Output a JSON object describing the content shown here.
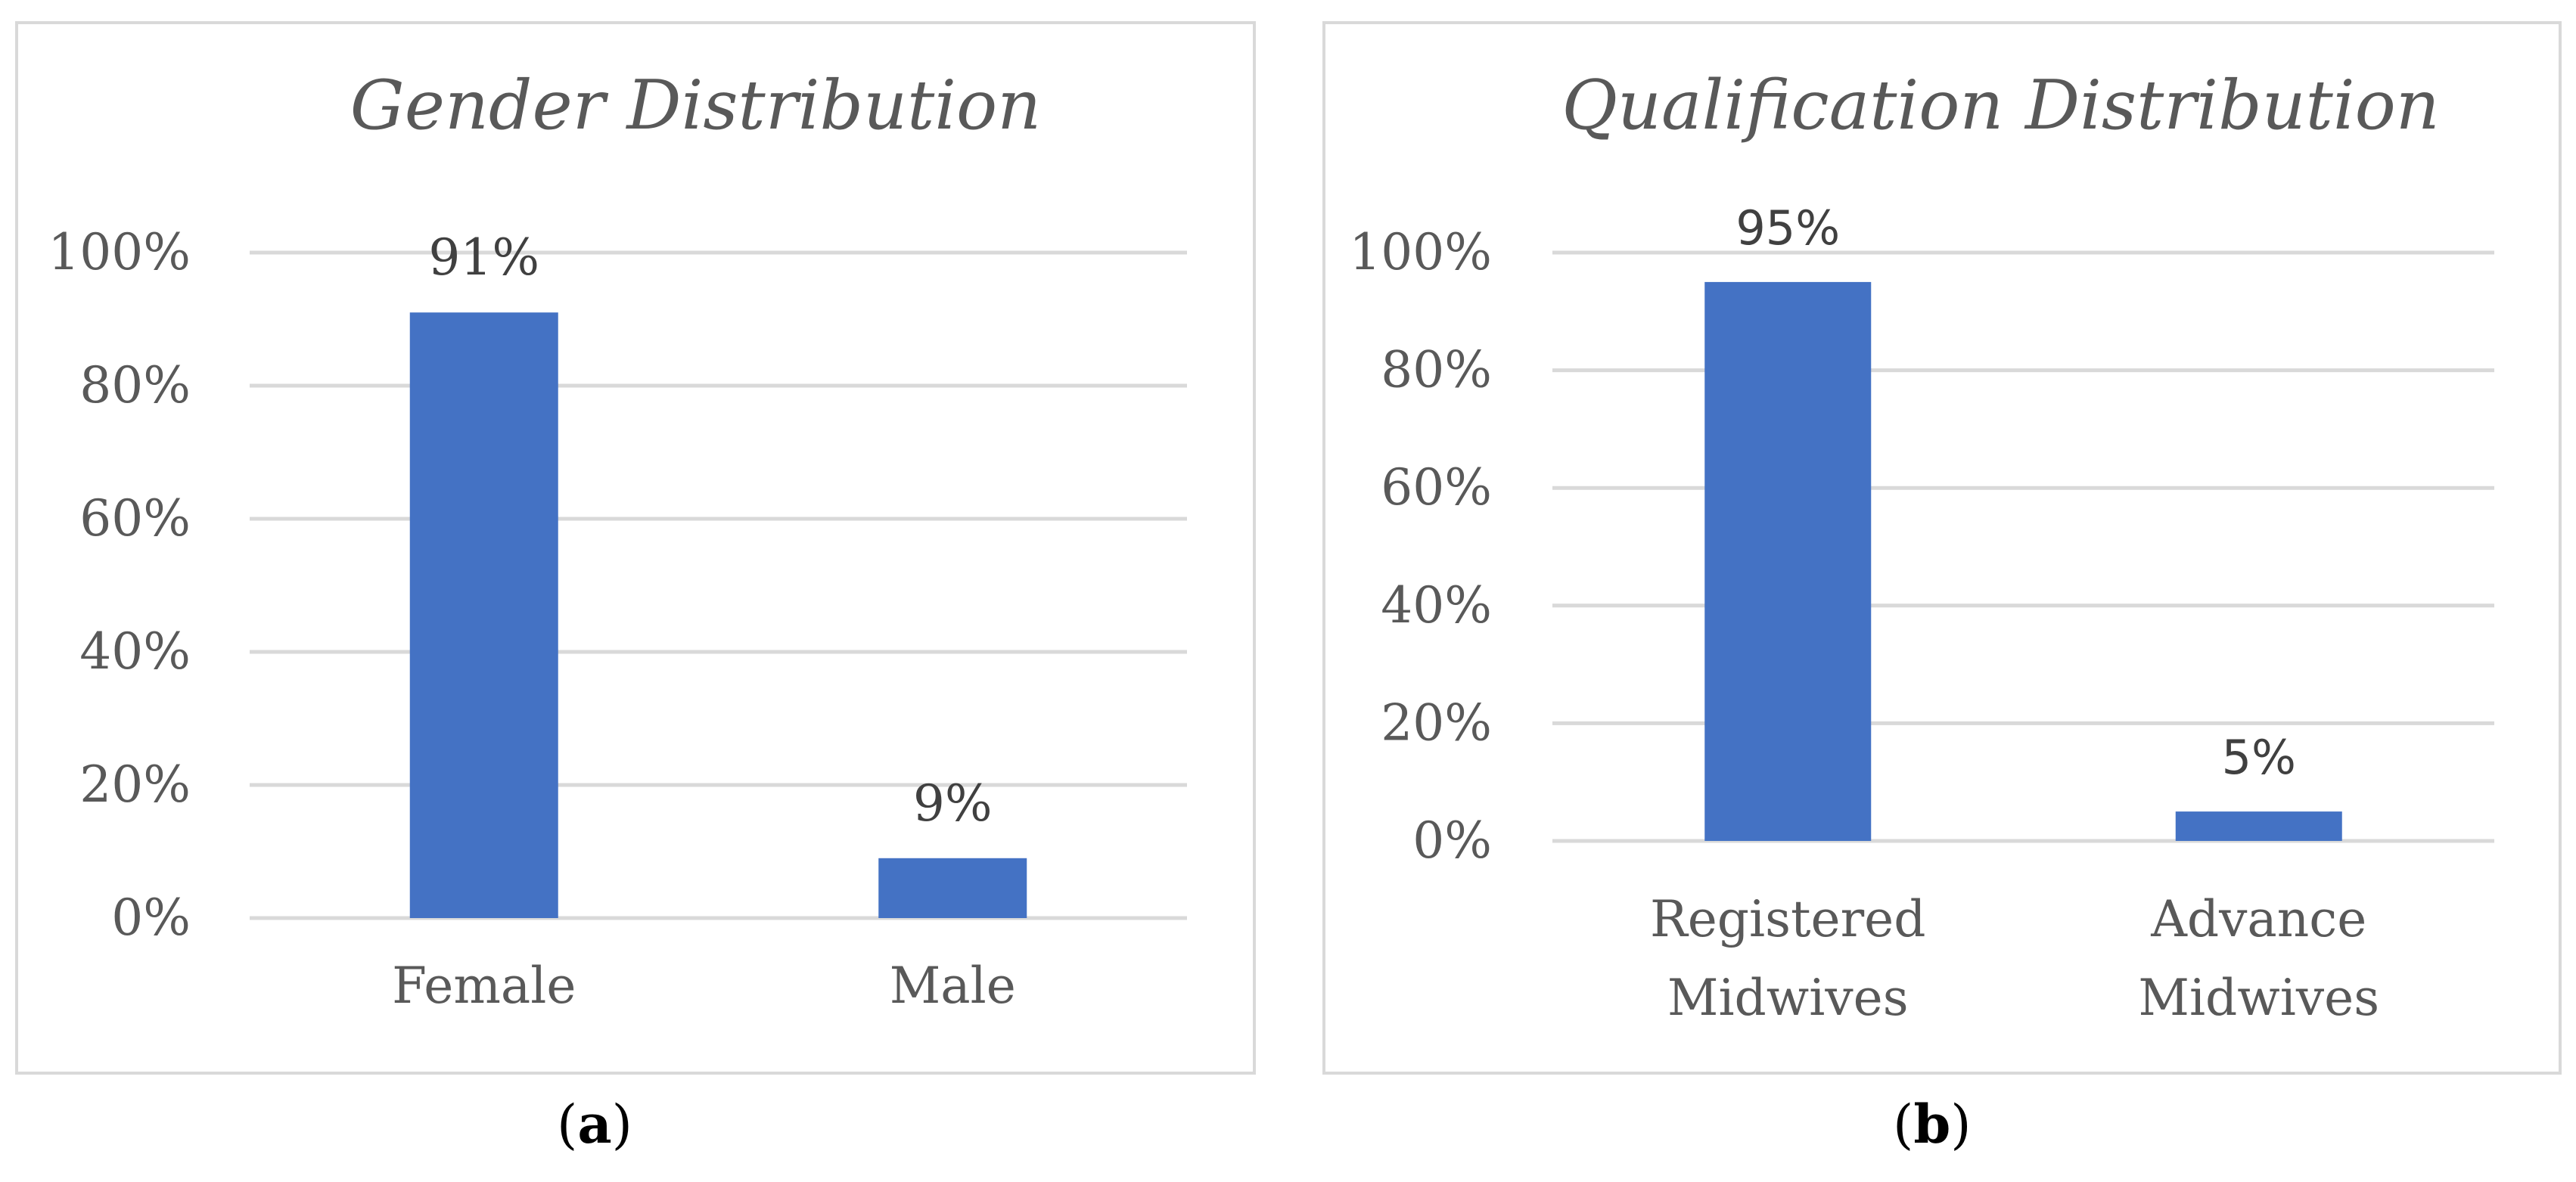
{
  "chart_data": [
    {
      "type": "bar",
      "title": "Gender Distribution",
      "categories": [
        "Female",
        "Male"
      ],
      "values": [
        91,
        9
      ],
      "data_labels": [
        "91%",
        "9%"
      ],
      "ylim": [
        0,
        100
      ],
      "yticks": [
        "0%",
        "20%",
        "40%",
        "60%",
        "80%",
        "100%"
      ],
      "grid": true,
      "bar_color": "#4472c4",
      "panel_caption": "a"
    },
    {
      "type": "bar",
      "title": "Qualification Distribution",
      "categories": [
        [
          "Registered",
          "Midwives"
        ],
        [
          "Advance",
          "Midwives"
        ]
      ],
      "values": [
        95,
        5
      ],
      "data_labels": [
        "95%",
        "5%"
      ],
      "ylim": [
        0,
        100
      ],
      "yticks": [
        "0%",
        "20%",
        "40%",
        "60%",
        "80%",
        "100%"
      ],
      "grid": true,
      "bar_color": "#4472c4",
      "panel_caption": "b"
    }
  ]
}
